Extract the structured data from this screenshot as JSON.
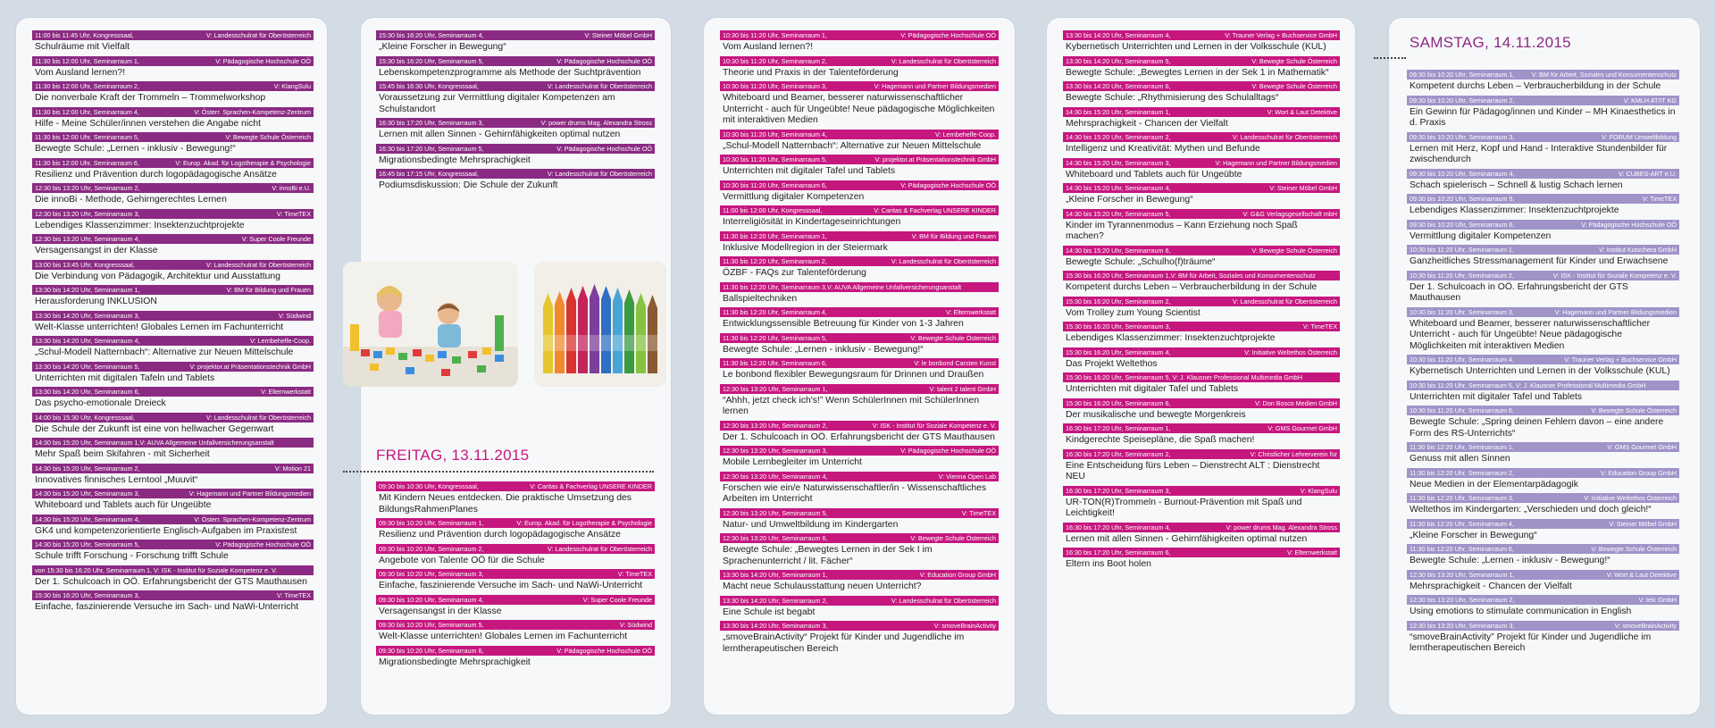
{
  "days": {
    "friday": "FREITAG, 13.11.2015",
    "saturday": "SAMSTAG, 14.11.2015"
  },
  "colors": {
    "magenta": "#c6177f",
    "purple": "#8b2a82",
    "lavender": "#9f93c8",
    "dot": "#e3002b",
    "square": "#3b3e86",
    "star": "#3ba13a"
  },
  "col1": [
    {
      "c": "p",
      "l": "11:00 bis 11:45 Uhr, Kongresssaal,",
      "r": "V: Landesschulrat für Oberösterreich",
      "t": "Schulräume mit Vielfalt",
      "m": "dot"
    },
    {
      "c": "p",
      "l": "11:30 bis 12:00 Uhr, Seminarraum 1,",
      "r": "V: Pädagogische Hochschule OÖ",
      "t": "Vom Ausland lernen?!"
    },
    {
      "c": "p",
      "l": "11:30 bis 12:00 Uhr, Seminarraum 2,",
      "r": "V: KlangSulu",
      "t": "Die nonverbale Kraft der Trommeln – Trommelworkshop"
    },
    {
      "c": "p",
      "l": "11:30 bis 12:00 Uhr, Seminarraum 4,",
      "r": "V: Österr. Sprachen-Kompetenz-Zentrum",
      "t": "Hilfe - Meine Schüler/innen verstehen die Angabe nicht"
    },
    {
      "c": "p",
      "l": "11:30 bis 12:00 Uhr, Seminarraum 5,",
      "r": "V: Bewegte Schule Österreich",
      "t": "Bewegte Schule: „Lernen - inklusiv - Bewegung!“"
    },
    {
      "c": "p",
      "l": "11:30 bis 12:00 Uhr, Seminarraum 6,",
      "r": "V: Europ. Akad. für Logotherapie & Psychologie",
      "t": "Resilienz und Prävention durch logopädagogische Ansätze"
    },
    {
      "c": "p",
      "l": "12:30 bis 13:20 Uhr, Seminarraum 2,",
      "r": "V: innoBi e.U.",
      "t": "Die innoBi - Methode, Gehirngerechtes Lernen"
    },
    {
      "c": "p",
      "l": "12:30 bis 13:20 Uhr, Seminarraum 3,",
      "r": "V: TimeTEX",
      "t": "Lebendiges Klassenzimmer: Insektenzuchtprojekte"
    },
    {
      "c": "p",
      "l": "12:30 bis 13:20 Uhr, Seminarraum 4,",
      "r": "V: Super Coole Freunde",
      "t": "Versagensangst in der Klasse"
    },
    {
      "c": "p",
      "l": "13:00 bis 13:45 Uhr, Kongresssaal,",
      "r": "V: Landesschulrat für Oberösterreich",
      "t": "Die Verbindung von Pädagogik, Architektur und Ausstattung",
      "m": "dot"
    },
    {
      "c": "p",
      "l": "13:30 bis 14:20 Uhr, Seminarraum 1,",
      "r": "V: BM für Bildung und Frauen",
      "t": "Herausforderung INKLUSION"
    },
    {
      "c": "p",
      "l": "13:30 bis 14:20 Uhr, Seminarraum 3,",
      "r": "V: Südwind",
      "t": "Welt-Klasse unterrichten! Globales Lernen im Fachunterricht"
    },
    {
      "c": "p",
      "l": "13:30 bis 14:20 Uhr, Seminarraum 4,",
      "r": "V: Lernbehelfe-Coop.",
      "t": "„Schul-Modell Natternbach“: Alternative zur Neuen Mittelschule"
    },
    {
      "c": "p",
      "l": "13:30 bis 14:20 Uhr, Seminarraum 5,",
      "r": "V: projektor.at Präsentationstechnik GmbH",
      "t": "Unterrichten mit digitalen Tafeln und Tablets"
    },
    {
      "c": "p",
      "l": "13:30 bis 14:20 Uhr, Seminarraum 6,",
      "r": "V: Elternwerkstatt",
      "t": "Das psycho-emotionale Dreieck"
    },
    {
      "c": "p",
      "l": "14:00 bis 15:30 Uhr, Kongresssaal,",
      "r": "V: Landesschulrat für Oberösterreich",
      "t": "Die Schule der Zukunft ist eine von hellwacher Gegenwart",
      "m": "dot"
    },
    {
      "c": "p",
      "l": "14:30 bis 15:20 Uhr, Seminarraum 1,V: AUVA Allgemeine Unfallversicherungsanstalt",
      "r": "",
      "t": "Mehr Spaß beim Skifahren - mit Sicherheit"
    },
    {
      "c": "p",
      "l": "14:30 bis 15:20 Uhr, Seminarraum 2,",
      "r": "V: Motion 21",
      "t": "Innovatives finnisches Lerntool „Muuvit“"
    },
    {
      "c": "p",
      "l": "14:30 bis 15:20 Uhr, Seminarraum 3,",
      "r": "V: Hagemann und Partner Bildungsmedien",
      "t": "Whiteboard und Tablets auch für Ungeübte"
    },
    {
      "c": "p",
      "l": "14:30 bis 15:20 Uhr, Seminarraum 4,",
      "r": "V: Österr. Sprachen-Kompetenz-Zentrum",
      "t": "GK4 und kompetenzorientierte Englisch-Aufgaben im Praxistest"
    },
    {
      "c": "p",
      "l": "14:30 bis 15:20 Uhr, Seminarraum 5,",
      "r": "V: Pädagogische Hochschule OÖ",
      "t": "Schule trifft Forschung - Forschung trifft Schule"
    },
    {
      "c": "p",
      "l": "von 15:30 bis 16:20 Uhr, Seminarraum 1, V: ISK - Institut für Soziale Kompetenz e. V.",
      "r": "",
      "t": "Der 1. Schulcoach in OÖ. Erfahrungsbericht der GTS Mauthausen"
    },
    {
      "c": "p",
      "l": "15:30 bis 16:20 Uhr, Seminarraum 3,",
      "r": "V: TimeTEX",
      "t": "Einfache, faszinierende Versuche im Sach- und NaWi-Unterricht"
    }
  ],
  "col2a": [
    {
      "c": "p",
      "l": "15:30 bis 16:20 Uhr, Seminarraum 4,",
      "r": "V: Steiner Möbel GmbH",
      "t": "„Kleine Forscher in Bewegung“"
    },
    {
      "c": "p",
      "l": "15:30 bis 16:20 Uhr, Seminarraum 5,",
      "r": "V: Pädagogische Hochschule OÖ",
      "t": "Lebenskompetenzprogramme als Methode der Suchtprävention"
    },
    {
      "c": "p",
      "l": "15:45 bis 16:30 Uhr, Kongresssaal,",
      "r": "V: Landesschulrat für Oberösterreich",
      "t": "Voraussetzung zur Vermittlung digitaler Kompetenzen am Schulstandort",
      "m": "dot"
    },
    {
      "c": "p",
      "l": "16:30 bis 17:20 Uhr, Seminarraum 3,",
      "r": "V: power drums Mag. Alexandra Stross",
      "t": "Lernen mit allen Sinnen - Gehirnfähigkeiten optimal nutzen"
    },
    {
      "c": "p",
      "l": "16:30 bis 17:20 Uhr, Seminarraum 5,",
      "r": "V: Pädagogische Hochschule OÖ",
      "t": "Migrationsbedingte Mehrsprachigkeit"
    },
    {
      "c": "p",
      "l": "16:45 bis 17:15 Uhr, Kongresssaal,",
      "r": "V: Landesschulrat für Oberösterreich",
      "t": "Podiumsdiskussion: Die Schule der Zukunft",
      "m": "dot"
    }
  ],
  "col2b": [
    {
      "c": "m",
      "l": "09:30 bis 10:30 Uhr, Kongresssaal,",
      "r": "V: Caritas & Fachverlag UNSERE KINDER",
      "t": "Mit Kindern Neues entdecken. Die praktische Umsetzung des BildungsRahmenPlanes",
      "m": "star"
    },
    {
      "c": "m",
      "l": "09:30 bis 10:20 Uhr, Seminarraum 1,",
      "r": "V: Europ. Akad. für Logotherapie & Psychologie",
      "t": "Resilienz und Prävention durch logopädagogische Ansätze"
    },
    {
      "c": "m",
      "l": "09:30 bis 10:20 Uhr, Seminarraum 2,",
      "r": "V: Landesschulrat für Oberösterreich",
      "t": "Angebote von Talente OÖ für die Schule",
      "m": "sq"
    },
    {
      "c": "m",
      "l": "09:30 bis 10:20 Uhr, Seminarraum 3,",
      "r": "V: TimeTEX",
      "t": "Einfache, faszinierende Versuche im Sach- und NaWi-Unterricht"
    },
    {
      "c": "m",
      "l": "09:30 bis 10:20 Uhr, Seminarraum 4,",
      "r": "V: Super Coole Freunde",
      "t": "Versagensangst in der Klasse"
    },
    {
      "c": "m",
      "l": "09:30 bis 10:20 Uhr, Seminarraum 5,",
      "r": "V: Südwind",
      "t": "Welt-Klasse unterrichten! Globales Lernen im Fachunterricht"
    },
    {
      "c": "m",
      "l": "09:30 bis 10:20 Uhr, Seminarraum 6,",
      "r": "V: Pädagogische Hochschule OÖ",
      "t": "Migrationsbedingte Mehrsprachigkeit"
    }
  ],
  "col3": [
    {
      "c": "m",
      "l": "10:30 bis 11:20 Uhr, Seminarraum 1,",
      "r": "V: Pädagogische Hochschule OÖ",
      "t": "Vom Ausland lernen?!"
    },
    {
      "c": "m",
      "l": "10:30 bis 11:20 Uhr, Seminarraum 2,",
      "r": "V: Landesschulrat für Oberösterreich",
      "t": "Theorie und Praxis in der Talenteförderung",
      "m": "sq"
    },
    {
      "c": "m",
      "l": "10:30 bis 11:20 Uhr, Seminarraum 3,",
      "r": "V: Hagemann und Partner Bildungsmedien",
      "t": "Whiteboard und Beamer, besserer naturwissenschaftlicher Unterricht - auch für Ungeübte! Neue pädagogische Möglichkeiten mit interaktiven Medien"
    },
    {
      "c": "m",
      "l": "10:30 bis 11:20 Uhr, Seminarraum 4,",
      "r": "V: Lernbehelfe-Coop.",
      "t": "„Schul-Modell Natternbach“: Alternative zur Neuen Mittelschule"
    },
    {
      "c": "m",
      "l": "10:30 bis 11:20 Uhr, Seminarraum 5,",
      "r": "V: projektor.at Präsentationstechnik GmbH",
      "t": "Unterrichten mit digitaler Tafel und Tablets"
    },
    {
      "c": "m",
      "l": "10:30 bis 11:20 Uhr, Seminarraum 6,",
      "r": "V: Pädagogische Hochschule OÖ",
      "t": "Vermittlung digitaler Kompetenzen"
    },
    {
      "c": "m",
      "l": "11:00 bis 12:00 Uhr, Kongresssaal,",
      "r": "V: Caritas & Fachverlag UNSERE KINDER",
      "t": "Interreligiösität in Kindertageseinrichtungen",
      "m": "star"
    },
    {
      "c": "m",
      "l": "11:30 bis 12:20 Uhr, Seminarraum 1,",
      "r": "V: BM für Bildung und Frauen",
      "t": "Inklusive Modellregion in der Steiermark"
    },
    {
      "c": "m",
      "l": "11:30 bis 12:20 Uhr, Seminarraum 2,",
      "r": "V: Landesschulrat für Oberösterreich",
      "t": "ÖZBF - FAQs zur Talenteförderung",
      "m": "sq"
    },
    {
      "c": "m",
      "l": "11:30 bis 12:20 Uhr, Seminarraum 3,V: AUVA Allgemeine Unfallversicherungsanstalt",
      "r": "",
      "t": "Ballspieltechniken"
    },
    {
      "c": "m",
      "l": "11:30 bis 12:20 Uhr, Seminarraum 4,",
      "r": "V: Elternwerkstatt",
      "t": "Entwicklungssensible Betreuung für Kinder von 1-3 Jahren"
    },
    {
      "c": "m",
      "l": "11:30 bis 12:20 Uhr, Seminarraum 5,",
      "r": "V: Bewegte Schule Österreich",
      "t": "Bewegte Schule: „Lernen - inklusiv - Bewegung!“"
    },
    {
      "c": "m",
      "l": "11:30 bis 12:20 Uhr, Seminarraum 6,",
      "r": "V: le bonbond Carsten Kunst",
      "t": "Le bonbond flexibler Bewegungsraum für Drinnen und Draußen"
    },
    {
      "c": "m",
      "l": "12:30 bis 13:20 Uhr, Seminarraum 1,",
      "r": "V: talent 2 talent GmbH",
      "t": "“Ahhh, jetzt check ich's!” Wenn SchülerInnen mit SchülerInnen lernen"
    },
    {
      "c": "m",
      "l": "12:30 bis 13:20 Uhr, Seminarraum 2,",
      "r": "V: ISK - Institut für Soziale Kompetenz e. V.",
      "t": "Der 1. Schulcoach in OÖ. Erfahrungsbericht der GTS Mauthausen"
    },
    {
      "c": "m",
      "l": "12:30 bis 13:20 Uhr, Seminarraum 3,",
      "r": "V: Pädagogische Hochschule OÖ",
      "t": "Mobile Lernbegleiter im Unterricht"
    },
    {
      "c": "m",
      "l": "12:30 bis 13:20 Uhr, Seminarraum 4,",
      "r": "V: Vienna Open Lab",
      "t": "Forschen wie ein/e Naturwissenschaftler/in - Wissenschaftliches Arbeiten im Unterricht"
    },
    {
      "c": "m",
      "l": "12:30 bis 13:20 Uhr, Seminarraum 5,",
      "r": "V: TimeTEX",
      "t": "Natur- und Umweltbildung im Kindergarten"
    },
    {
      "c": "m",
      "l": "12:30 bis 13:20 Uhr, Seminarraum 6,",
      "r": "V: Bewegte Schule Österreich",
      "t": "Bewegte Schule: „Bewegtes Lernen in der Sek I im Sprachenunterricht / lit. Fächer“"
    },
    {
      "c": "m",
      "l": "13:30 bis 14:20 Uhr, Seminarraum 1,",
      "r": "V: Education Group GmbH",
      "t": "Macht neue Schulausstattung neuen Unterricht?"
    },
    {
      "c": "m",
      "l": "13:30 bis 14:20 Uhr, Seminarraum 2,",
      "r": "V: Landesschulrat für Oberösterreich",
      "t": "Eine Schule ist begabt",
      "m": "sq"
    },
    {
      "c": "m",
      "l": "13:30 bis 14:20 Uhr, Seminarraum 3,",
      "r": "V: smoveBrainActivity",
      "t": "„smoveBrainActivity“ Projekt für Kinder und Jugendliche im lerntherapeutischen Bereich"
    }
  ],
  "col4": [
    {
      "c": "m",
      "l": "13:30 bis 14:20 Uhr, Seminarraum 4,",
      "r": "V: Trauner Verlag + Buchservice GmbH",
      "t": "Kybernetisch Unterrichten und Lernen in der Volksschule (KUL)"
    },
    {
      "c": "m",
      "l": "13:30 bis 14:20 Uhr, Seminarraum 5,",
      "r": "V: Bewegte Schule Österreich",
      "t": "Bewegte Schule: „Bewegtes Lernen in der Sek 1 in Mathematik“"
    },
    {
      "c": "m",
      "l": "13:30 bis 14:20 Uhr, Seminarraum 6,",
      "r": "V: Bewegte Schule Österreich",
      "t": "Bewegte Schule: „Rhythmisierung des Schulalltags“"
    },
    {
      "c": "m",
      "l": "14:30 bis 15:20 Uhr, Seminarraum 1,",
      "r": "V: Wort & Laut Detektive",
      "t": "Mehrsprachigkeit - Chancen der Vielfalt"
    },
    {
      "c": "m",
      "l": "14:30 bis 15:20 Uhr, Seminarraum 2,",
      "r": "V: Landesschulrat für Oberösterreich",
      "t": "Intelligenz und Kreativität: Mythen und Befunde",
      "m": "sq"
    },
    {
      "c": "m",
      "l": "14:30 bis 15:20 Uhr, Seminarraum 3,",
      "r": "V: Hagemann und Partner Bildungsmedien",
      "t": "Whiteboard und Tablets auch für Ungeübte"
    },
    {
      "c": "m",
      "l": "14:30 bis 15:20 Uhr, Seminarraum 4,",
      "r": "V: Steiner Möbel GmbH",
      "t": "„Kleine Forscher in Bewegung“"
    },
    {
      "c": "m",
      "l": "14:30 bis 15:20 Uhr, Seminarraum 5,",
      "r": "V: G&G Verlagsgesellschaft mbH",
      "t": "Kinder im Tyrannenmodus – Kann Erziehung noch Spaß machen?"
    },
    {
      "c": "m",
      "l": "14:30 bis 15:20 Uhr, Seminarraum 6,",
      "r": "V: Bewegte Schule Österreich",
      "t": "Bewegte Schule: „Schulho(f)träume“"
    },
    {
      "c": "m",
      "l": "15:30 bis 16:20 Uhr, Seminarraum 1,V: BM für Arbeit, Soziales und Konsumentenschutz",
      "r": "",
      "t": "Kompetent durchs Leben – Verbraucherbildung in der Schule"
    },
    {
      "c": "m",
      "l": "15:30 bis 16:20 Uhr, Seminarraum 2,",
      "r": "V: Landesschulrat für Oberösterreich",
      "t": "Vom Trolley zum Young Scientist",
      "m": "sq"
    },
    {
      "c": "m",
      "l": "15:30 bis 16:20 Uhr, Seminarraum 3,",
      "r": "V: TimeTEX",
      "t": "Lebendiges Klassenzimmer: Insektenzuchtprojekte"
    },
    {
      "c": "m",
      "l": "15:30 bis 16:20 Uhr, Seminarraum 4,",
      "r": "V: Initiative Weltethos Österreich",
      "t": "Das Projekt Weltethos"
    },
    {
      "c": "m",
      "l": "15:30 bis 16:20 Uhr, Seminarraum 5, V: J. Klausner Professional Multimedia GmbH",
      "r": "",
      "t": "Unterrichten mit digitaler Tafel und Tablets"
    },
    {
      "c": "m",
      "l": "15:30 bis 16:20 Uhr, Seminarraum 6,",
      "r": "V: Don Bosco Medien GmbH",
      "t": "Der musikalische und bewegte Morgenkreis"
    },
    {
      "c": "m",
      "l": "16:30 bis 17:20 Uhr, Seminarraum 1,",
      "r": "V: GMS Gourmet GmbH",
      "t": "Kindgerechte Speisepläne, die Spaß machen!"
    },
    {
      "c": "m",
      "l": "16:30 bis 17:20 Uhr, Seminarraum 2,",
      "r": "V: Christlicher Lehrerverein für",
      "t": "Eine Entscheidung fürs Leben – Dienstrecht ALT : Dienstrecht NEU"
    },
    {
      "c": "m",
      "l": "16:30 bis 17:20 Uhr, Seminarraum 3,",
      "r": "V: KlangSulu",
      "t": "UR-TON(R)Trommeln - Burnout-Prävention mit Spaß und Leichtigkeit!"
    },
    {
      "c": "m",
      "l": "16:30 bis 17:20 Uhr, Seminarraum 4,",
      "r": "V: power drums Mag. Alexandra Stross",
      "t": "Lernen mit allen Sinnen - Gehirnfähigkeiten optimal nutzen"
    },
    {
      "c": "m",
      "l": "16:30 bis 17:20 Uhr, Seminarraum 6,",
      "r": "V: Elternwerkstatt",
      "t": "Eltern ins Boot holen"
    }
  ],
  "col5": [
    {
      "c": "l",
      "l": "09:30 bis 10:20 Uhr, Seminarraum 1,",
      "r": "V: BM für Arbeit, Soziales und Konsumentenschutz",
      "t": "Kompetent durchs Leben – Verbraucherbildung in der Schule"
    },
    {
      "c": "l",
      "l": "09:30 bis 10:20 Uhr, Seminarraum 2,",
      "r": "V: KMLH AT/IT KG",
      "t": "Ein Gewinn für Pädagog/innen und Kinder – MH Kinaesthetics in d. Praxis"
    },
    {
      "c": "l",
      "l": "09:30 bis 10:20 Uhr, Seminarraum 3,",
      "r": "V: FORUM Umweltbildung",
      "t": "Lernen mit Herz, Kopf und Hand - Interaktive Stundenbilder für zwischendurch"
    },
    {
      "c": "l",
      "l": "09:30 bis 10:20 Uhr, Seminarraum 4,",
      "r": "V: CUBES-ART e.U.",
      "t": "Schach spielerisch – Schnell & lustig Schach lernen"
    },
    {
      "c": "l",
      "l": "09:30 bis 10:20 Uhr, Seminarraum 5,",
      "r": "V: TimeTEX",
      "t": "Lebendiges Klassenzimmer: Insektenzuchtprojekte"
    },
    {
      "c": "l",
      "l": "09:30 bis 10:20 Uhr, Seminarraum 6,",
      "r": "V: Pädagogische Hochschule OÖ",
      "t": "Vermittlung digitaler Kompetenzen"
    },
    {
      "c": "l",
      "l": "10:30 bis 11:20 Uhr, Seminarraum 1,",
      "r": "V: Institut Kutschera GmbH",
      "t": "Ganzheitliches Stressmanagement für Kinder und Erwachsene"
    },
    {
      "c": "l",
      "l": "10:30 bis 11:20 Uhr, Seminarraum 2,",
      "r": "V: ISK - Institut für Soziale Kompetenz e. V.",
      "t": "Der 1. Schulcoach in OÖ. Erfahrungsbericht der GTS Mauthausen"
    },
    {
      "c": "l",
      "l": "10:30 bis 11:20 Uhr, Seminarraum 3,",
      "r": "V: Hagemann und Partner Bildungsmedien",
      "t": "Whiteboard und Beamer, besserer naturwissenschaftlicher Unterricht - auch für Ungeübte! Neue pädagogische Möglichkeiten mit interaktiven Medien"
    },
    {
      "c": "l",
      "l": "10:30 bis 11:20 Uhr, Seminarraum 4,",
      "r": "V: Trauner Verlag + Buchservice GmbH",
      "t": "Kybernetisch Unterrichten und Lernen in der Volksschule (KUL)"
    },
    {
      "c": "l",
      "l": "10:30 bis 11:20 Uhr, Seminarraum 5, V: J. Klausner Professional Multimedia GmbH",
      "r": "",
      "t": "Unterrichten mit digitaler Tafel und Tablets"
    },
    {
      "c": "l",
      "l": "10:30 bis 11:20 Uhr, Seminarraum 6,",
      "r": "V: Bewegte Schule Österreich",
      "t": "Bewegte Schule: „Spring deinen Fehlern davon – eine andere Form des RS-Unterrichts“"
    },
    {
      "c": "l",
      "l": "11:30 bis 12:20 Uhr, Seminarraum 1,",
      "r": "V: GMS Gourmet GmbH",
      "t": "Genuss mit allen Sinnen"
    },
    {
      "c": "l",
      "l": "11:30 bis 12:20 Uhr, Seminarraum 2,",
      "r": "V: Education Group GmbH",
      "t": "Neue Medien in der Elementarpädagogik"
    },
    {
      "c": "l",
      "l": "11:30 bis 12:20 Uhr, Seminarraum 3,",
      "r": "V: Initiative Weltethos Österreich",
      "t": "Weltethos im Kindergarten: „Verschieden und doch gleich!“"
    },
    {
      "c": "l",
      "l": "11:30 bis 12:20 Uhr, Seminarraum 4,",
      "r": "V: Steiner Möbel GmbH",
      "t": "„Kleine Forscher in Bewegung“"
    },
    {
      "c": "l",
      "l": "11:30 bis 12:20 Uhr, Seminarraum 6,",
      "r": "V: Bewegte Schule Österreich",
      "t": "Bewegte Schule: „Lernen - inklusiv - Bewegung!“"
    },
    {
      "c": "l",
      "l": "12:30 bis 13:20 Uhr, Seminarraum 1,",
      "r": "V: Wort & Laut Detektive",
      "t": "Mehrsprachigkeit - Chancen der Vielfalt"
    },
    {
      "c": "l",
      "l": "12:30 bis 13:20 Uhr, Seminarraum 2,",
      "r": "V: telc GmbH",
      "t": "Using emotions to stimulate communication in English"
    },
    {
      "c": "l",
      "l": "12:30 bis 13:20 Uhr, Seminarraum 3,",
      "r": "V: smoveBrainActivity",
      "t": "“smoveBrainActivity” Projekt für Kinder und Jugendliche im lerntherapeutischen Bereich"
    }
  ]
}
